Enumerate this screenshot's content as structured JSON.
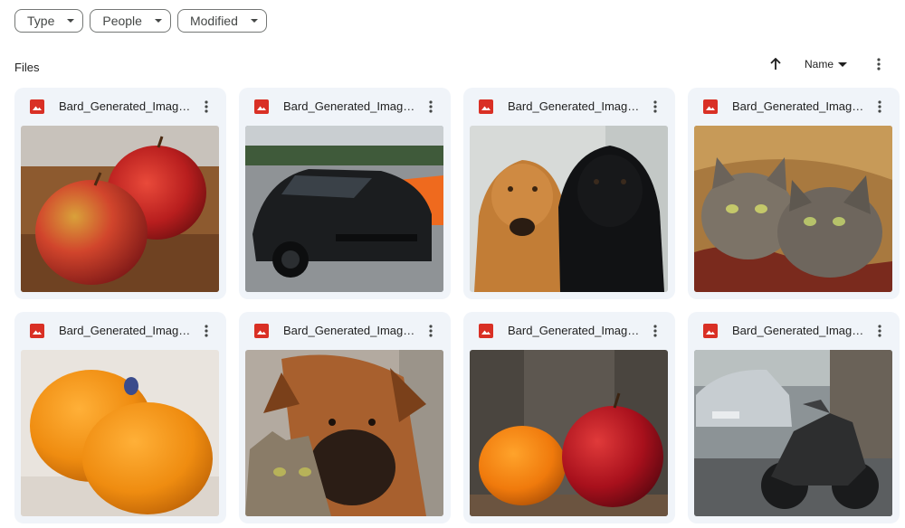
{
  "filters": [
    {
      "label": "Type"
    },
    {
      "label": "People"
    },
    {
      "label": "Modified"
    }
  ],
  "section_title": "Files",
  "sort": {
    "label": "Name"
  },
  "files": [
    {
      "name": "Bard_Generated_Image.jpg",
      "thumb": "two red apples on wood"
    },
    {
      "name": "Bard_Generated_Image.jpg",
      "thumb": "black sports car"
    },
    {
      "name": "Bard_Generated_Image.jpg",
      "thumb": "two labrador dogs"
    },
    {
      "name": "Bard_Generated_Image.jpg",
      "thumb": "two tabby cats in basket"
    },
    {
      "name": "Bard_Generated_Image.jpg",
      "thumb": "two oranges"
    },
    {
      "name": "Bard_Generated_Image.jpg",
      "thumb": "boxer dog with cat"
    },
    {
      "name": "Bard_Generated_Image.jpg",
      "thumb": "orange and red apple"
    },
    {
      "name": "Bard_Generated_Image.jpg",
      "thumb": "car and motorcycle on street"
    }
  ]
}
